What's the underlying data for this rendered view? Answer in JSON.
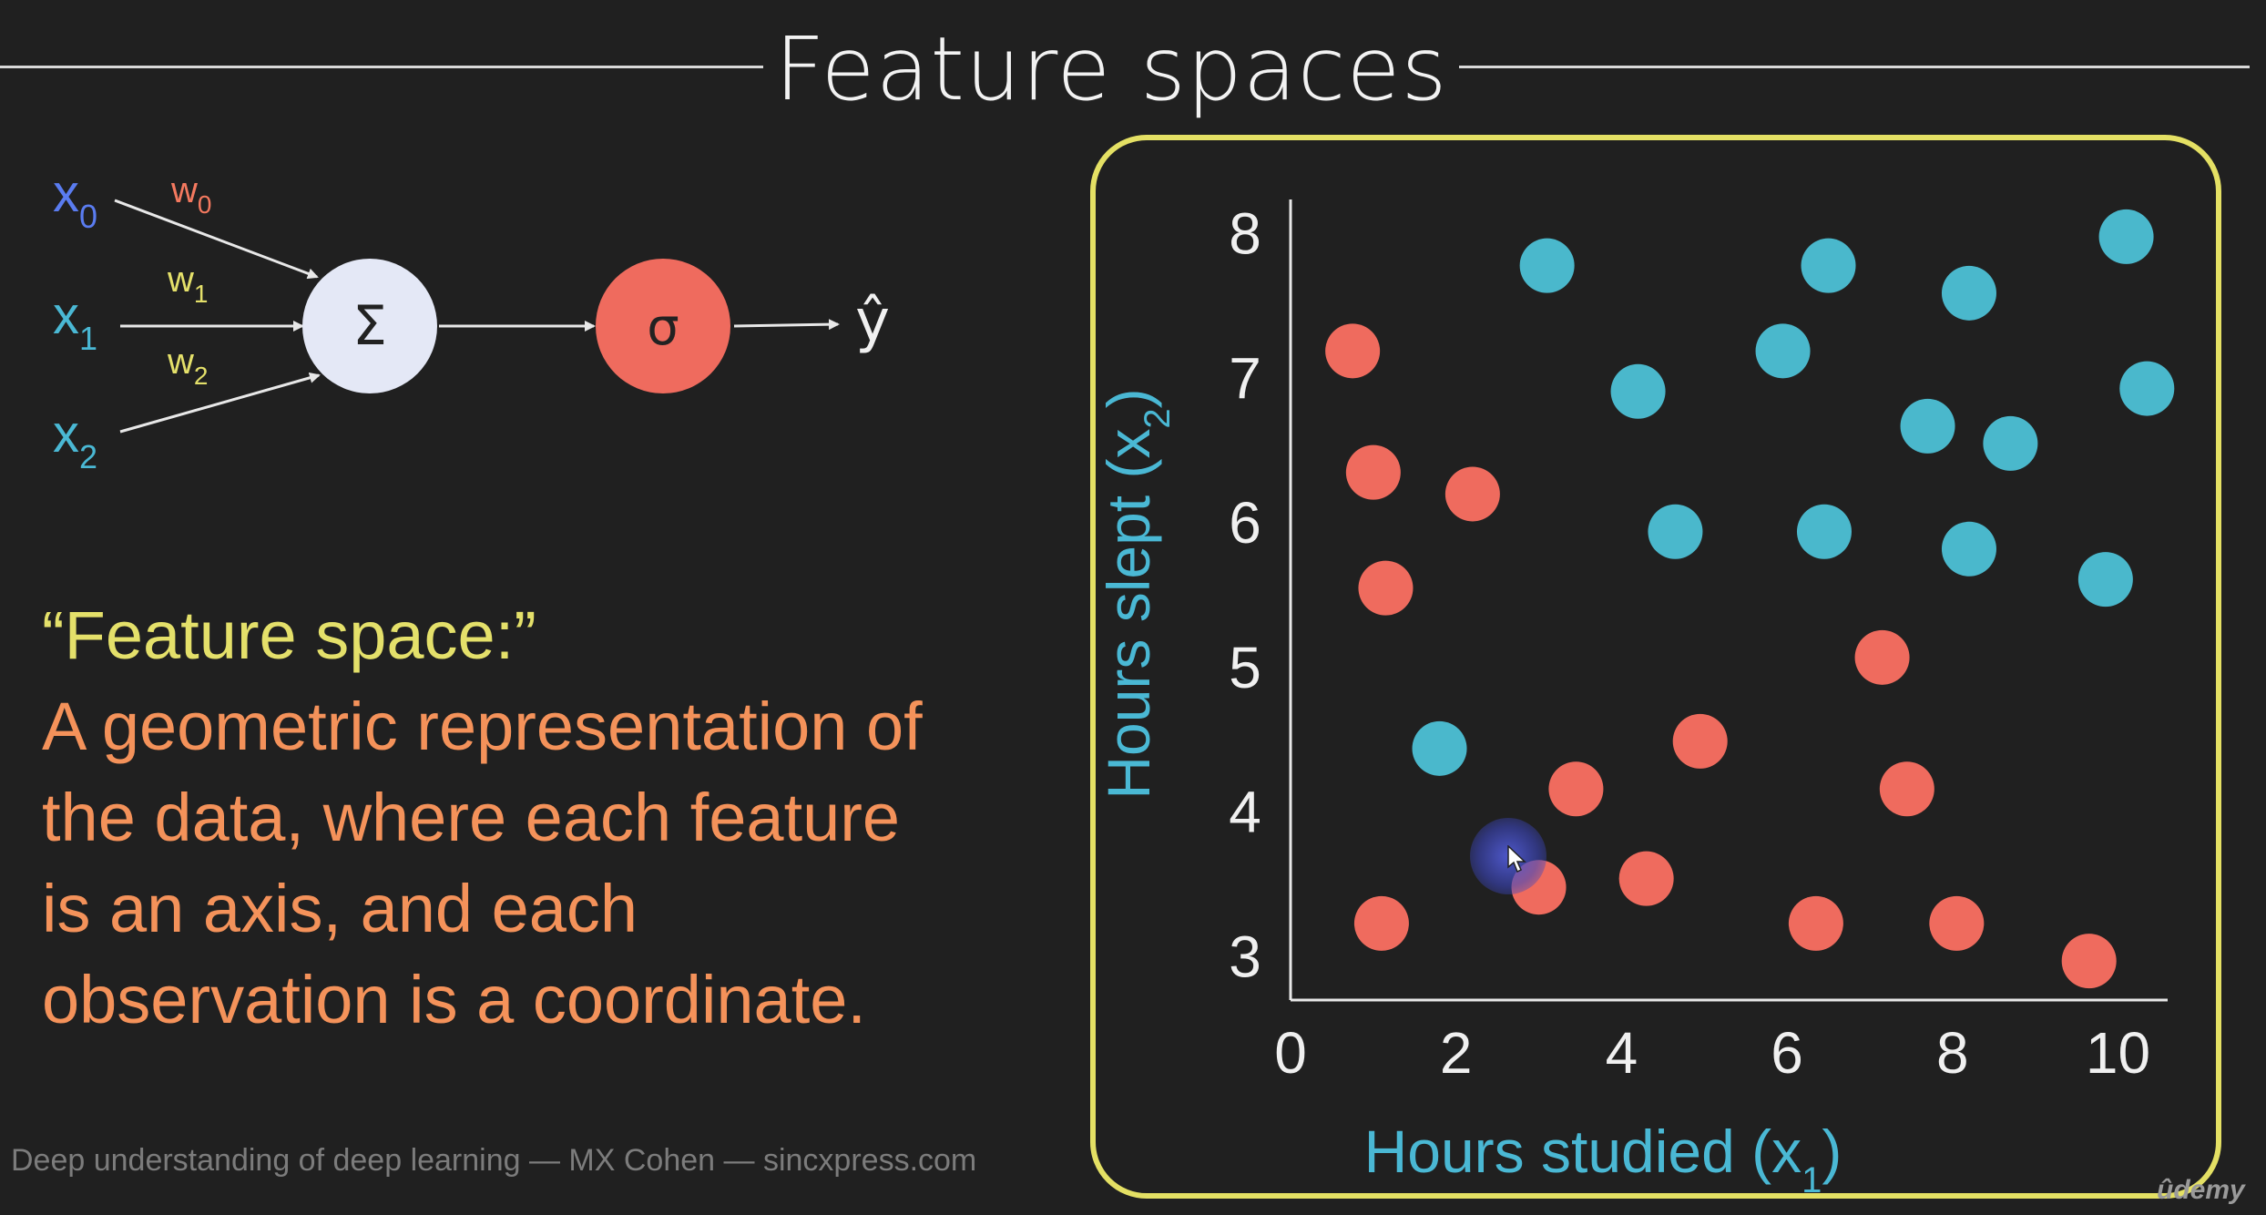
{
  "slide": {
    "title": "Feature spaces",
    "footer": "Deep understanding of deep learning — MX Cohen — sincxpress.com",
    "watermark": "ûdemy"
  },
  "neuron": {
    "inputs": [
      {
        "label": "x",
        "sub": "0",
        "color": "#5a7cf0"
      },
      {
        "label": "x",
        "sub": "1",
        "color": "#4ab8d4"
      },
      {
        "label": "x",
        "sub": "2",
        "color": "#4ab8d4"
      }
    ],
    "weights": [
      {
        "label": "w",
        "sub": "0",
        "color": "#f4795f"
      },
      {
        "label": "w",
        "sub": "1",
        "color": "#e4e06a"
      },
      {
        "label": "w",
        "sub": "2",
        "color": "#e4e06a"
      }
    ],
    "sum_symbol": "Σ",
    "activation_symbol": "σ",
    "output_symbol": "ŷ",
    "colors": {
      "sum_node": "#e4e8f6",
      "activation_node": "#ef6b5e",
      "arrows": "#e8e8e8"
    }
  },
  "definition": {
    "heading": "“Feature space:”",
    "lines": [
      "A geometric representation of",
      "the data, where each feature",
      "is an axis, and each",
      "observation is a coordinate."
    ],
    "colors": {
      "heading": "#e4e06a",
      "body": "#f4925a"
    }
  },
  "chart_data": {
    "type": "scatter",
    "xlabel": "Hours studied (x",
    "xlabel_sub": "1",
    "ylabel": "Hours slept (x",
    "ylabel_sub": "2",
    "xlim": [
      0,
      10.6
    ],
    "ylim": [
      2.7,
      8.2
    ],
    "xticks": [
      0,
      2,
      4,
      6,
      8,
      10
    ],
    "yticks": [
      3,
      4,
      5,
      6,
      7,
      8
    ],
    "grid": false,
    "colors": {
      "axis_label": "#4ab8d4",
      "frame": "#e4e064",
      "ticks": "#f0f0f0"
    },
    "series": [
      {
        "color": "#4ab8cc",
        "points": [
          [
            3.1,
            7.78
          ],
          [
            6.5,
            7.78
          ],
          [
            8.2,
            7.59
          ],
          [
            10.1,
            7.98
          ],
          [
            5.95,
            7.19
          ],
          [
            4.2,
            6.91
          ],
          [
            7.7,
            6.67
          ],
          [
            8.7,
            6.55
          ],
          [
            10.35,
            6.93
          ],
          [
            4.65,
            5.94
          ],
          [
            6.45,
            5.94
          ],
          [
            8.2,
            5.82
          ],
          [
            9.85,
            5.61
          ],
          [
            1.8,
            4.44
          ]
        ]
      },
      {
        "color": "#ef6b5e",
        "points": [
          [
            0.75,
            7.19
          ],
          [
            1.0,
            6.35
          ],
          [
            2.2,
            6.2
          ],
          [
            1.15,
            5.55
          ],
          [
            7.15,
            5.07
          ],
          [
            4.95,
            4.49
          ],
          [
            3.45,
            4.16
          ],
          [
            7.45,
            4.16
          ],
          [
            3.0,
            3.48
          ],
          [
            4.3,
            3.54
          ],
          [
            1.1,
            3.23
          ],
          [
            6.35,
            3.23
          ],
          [
            8.05,
            3.23
          ],
          [
            9.65,
            2.97
          ]
        ]
      }
    ]
  }
}
